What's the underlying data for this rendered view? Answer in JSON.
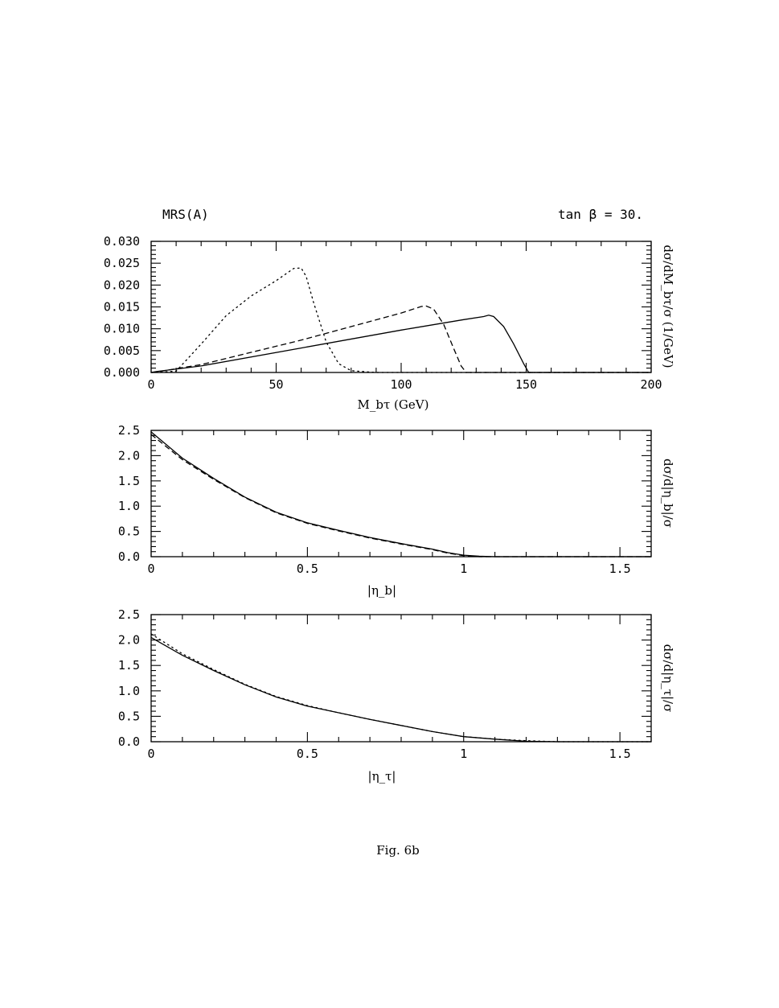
{
  "header": {
    "left_label": "MRS(A)",
    "right_label": "tan β = 30."
  },
  "caption": "Fig. 6b",
  "chart_data": [
    {
      "type": "line",
      "xlabel": "M_bτ (GeV)",
      "ylabel": "dσ/dM_bτ/σ (1/GeV)",
      "xlim": [
        0,
        200
      ],
      "ylim": [
        0,
        0.03
      ],
      "x_ticks": [
        0,
        50,
        100,
        150,
        200
      ],
      "x_tick_labels": [
        "0",
        "50",
        "100",
        "150",
        "200"
      ],
      "y_ticks": [
        0,
        0.005,
        0.01,
        0.015,
        0.02,
        0.025,
        0.03
      ],
      "y_tick_labels": [
        "0.000",
        "0.005",
        "0.010",
        "0.015",
        "0.020",
        "0.025",
        "0.030"
      ],
      "grid": false,
      "series": [
        {
          "style": "solid",
          "x": [
            0,
            2,
            20,
            60,
            100,
            125,
            133,
            135,
            137,
            141,
            145,
            149,
            151,
            200
          ],
          "y": [
            0,
            0.0002,
            0.0015,
            0.0056,
            0.0097,
            0.0121,
            0.0128,
            0.0131,
            0.0128,
            0.0105,
            0.0065,
            0.002,
            0,
            0
          ]
        },
        {
          "style": "dashed",
          "x": [
            0,
            3,
            20,
            60,
            100,
            108,
            110,
            113,
            117,
            121,
            124,
            126,
            150,
            200
          ],
          "y": [
            0,
            0.0002,
            0.0018,
            0.0074,
            0.0136,
            0.0151,
            0.0152,
            0.0145,
            0.011,
            0.0055,
            0.0015,
            0,
            0,
            0
          ]
        },
        {
          "style": "dotted",
          "x": [
            0,
            10,
            20,
            30,
            40,
            50,
            57,
            60,
            62,
            65,
            70,
            75,
            80,
            90,
            120,
            200
          ],
          "y": [
            0,
            0.0003,
            0.0065,
            0.013,
            0.0175,
            0.021,
            0.0238,
            0.0239,
            0.022,
            0.016,
            0.007,
            0.002,
            0.0004,
            0,
            0,
            0
          ]
        }
      ]
    },
    {
      "type": "line",
      "xlabel": "|η_b|",
      "ylabel": "dσ/d|η_b|/σ",
      "xlim": [
        0,
        1.6
      ],
      "ylim": [
        0,
        2.5
      ],
      "x_ticks": [
        0,
        0.5,
        1,
        1.5
      ],
      "x_tick_labels": [
        "0",
        "0.5",
        "1",
        "1.5"
      ],
      "y_ticks": [
        0,
        0.5,
        1,
        1.5,
        2,
        2.5
      ],
      "y_tick_labels": [
        "0.0",
        "0.5",
        "1.0",
        "1.5",
        "2.0",
        "2.5"
      ],
      "grid": false,
      "series": [
        {
          "style": "solid",
          "x": [
            0,
            0.1,
            0.2,
            0.3,
            0.4,
            0.5,
            0.6,
            0.7,
            0.8,
            0.9,
            0.95,
            1.0,
            1.05,
            1.1,
            1.6
          ],
          "y": [
            2.47,
            1.95,
            1.55,
            1.18,
            0.88,
            0.67,
            0.52,
            0.38,
            0.26,
            0.15,
            0.08,
            0.03,
            0.01,
            0,
            0
          ]
        },
        {
          "style": "dashed",
          "x": [
            0,
            0.1,
            0.2,
            0.3,
            0.4,
            0.5,
            0.6,
            0.7,
            0.8,
            0.9,
            0.95,
            1.0,
            1.05,
            1.6
          ],
          "y": [
            2.42,
            1.92,
            1.53,
            1.17,
            0.87,
            0.66,
            0.51,
            0.37,
            0.25,
            0.14,
            0.07,
            0.02,
            0,
            0
          ]
        }
      ]
    },
    {
      "type": "line",
      "xlabel": "|η_τ|",
      "ylabel": "dσ/d|η_τ|/σ",
      "xlim": [
        0,
        1.6
      ],
      "ylim": [
        0,
        2.5
      ],
      "x_ticks": [
        0,
        0.5,
        1,
        1.5
      ],
      "x_tick_labels": [
        "0",
        "0.5",
        "1",
        "1.5"
      ],
      "y_ticks": [
        0,
        0.5,
        1,
        1.5,
        2,
        2.5
      ],
      "y_tick_labels": [
        "0.0",
        "0.5",
        "1.0",
        "1.5",
        "2.0",
        "2.5"
      ],
      "grid": false,
      "series": [
        {
          "style": "solid",
          "x": [
            0,
            0.1,
            0.2,
            0.3,
            0.4,
            0.5,
            0.6,
            0.7,
            0.8,
            0.9,
            1.0,
            1.1,
            1.2,
            1.3,
            1.6
          ],
          "y": [
            2.05,
            1.7,
            1.4,
            1.12,
            0.88,
            0.7,
            0.57,
            0.44,
            0.32,
            0.2,
            0.1,
            0.05,
            0.01,
            0,
            0
          ]
        },
        {
          "style": "dotted",
          "x": [
            0,
            0.1,
            0.2,
            0.3,
            0.4,
            0.5,
            0.6,
            0.7,
            0.8,
            0.9,
            1.0,
            1.1,
            1.2,
            1.3,
            1.6
          ],
          "y": [
            2.12,
            1.73,
            1.42,
            1.13,
            0.89,
            0.71,
            0.57,
            0.44,
            0.32,
            0.2,
            0.1,
            0.05,
            0.02,
            0,
            0
          ]
        }
      ]
    }
  ]
}
